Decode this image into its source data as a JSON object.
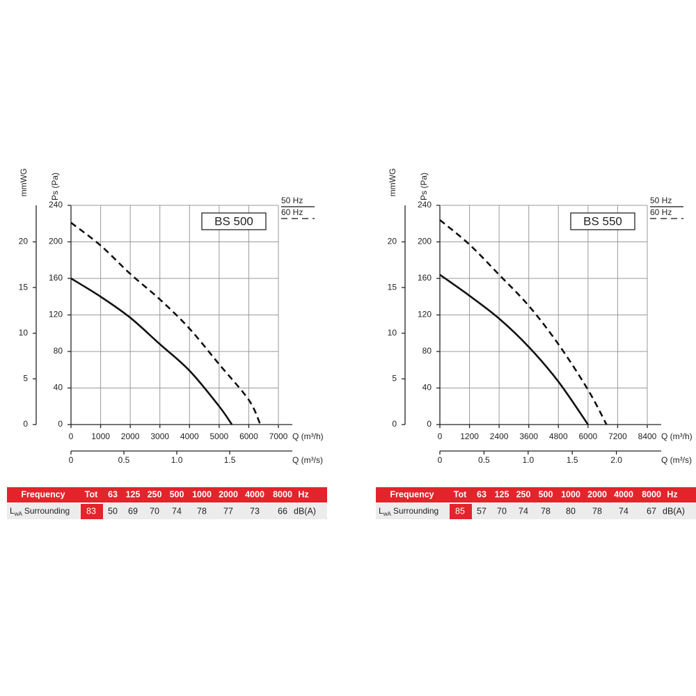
{
  "chart_data": [
    {
      "type": "line",
      "title": "BS 500",
      "y_label": "Ps (Pa)",
      "y2_label": "mmWG",
      "x_label": "Q (m³/h)",
      "x2_label": "Q (m³/s)",
      "xlim": [
        0,
        7000
      ],
      "xticks": [
        0,
        1000,
        2000,
        3000,
        4000,
        5000,
        6000,
        7000
      ],
      "x2lim": [
        0,
        1.96
      ],
      "x2ticks": [
        0,
        0.5,
        {
          "value": 1,
          "label": "1.0"
        },
        1.5
      ],
      "ylim": [
        0,
        240
      ],
      "yticks": [
        0,
        40,
        80,
        120,
        160,
        200,
        240
      ],
      "y2lim": [
        0,
        24
      ],
      "y2ticks": [
        0,
        5,
        10,
        15,
        20
      ],
      "grid": true,
      "legend": "right",
      "series": [
        {
          "name": "50 Hz",
          "color": "#111111",
          "dash": false,
          "x": [
            0,
            1000,
            2000,
            3000,
            4000,
            5000,
            5430
          ],
          "values": [
            160,
            140,
            117,
            88,
            59,
            20,
            0
          ]
        },
        {
          "name": "60 Hz",
          "color": "#111111",
          "dash": true,
          "x": [
            0,
            1000,
            2000,
            3000,
            4000,
            5000,
            6000,
            6390
          ],
          "values": [
            221,
            196,
            165,
            137,
            105,
            66,
            27,
            0
          ]
        }
      ],
      "table": {
        "header": [
          "Frequency",
          "Tot",
          "63",
          "125",
          "250",
          "500",
          "1000",
          "2000",
          "4000",
          "8000",
          "Hz"
        ],
        "row_label": [
          "L",
          "wA",
          "Surrounding"
        ],
        "tot": 83,
        "values": [
          50,
          69,
          70,
          74,
          78,
          77,
          73,
          66
        ],
        "unit": "dB(A)"
      }
    },
    {
      "type": "line",
      "title": "BS 550",
      "y_label": "Ps (Pa)",
      "y2_label": "mmWG",
      "x_label": "Q (m³/h)",
      "x2_label": "Q (m³/s)",
      "xlim": [
        0,
        8400
      ],
      "xticks": [
        0,
        1200,
        2400,
        3600,
        4800,
        6000,
        7200,
        8400
      ],
      "x2lim": [
        0,
        2.35
      ],
      "x2ticks": [
        0,
        0.5,
        {
          "value": 1,
          "label": "1.0"
        },
        1.5,
        {
          "value": 2,
          "label": "2.0"
        }
      ],
      "ylim": [
        0,
        240
      ],
      "yticks": [
        0,
        40,
        80,
        120,
        160,
        200,
        240
      ],
      "y2lim": [
        0,
        24
      ],
      "y2ticks": [
        0,
        5,
        10,
        15,
        20
      ],
      "grid": true,
      "legend": "right",
      "series": [
        {
          "name": "50 Hz",
          "color": "#111111",
          "dash": false,
          "x": [
            0,
            1200,
            2400,
            3600,
            4800,
            6000
          ],
          "values": [
            164,
            141,
            116,
            85,
            47,
            0
          ]
        },
        {
          "name": "60 Hz",
          "color": "#111111",
          "dash": true,
          "x": [
            0,
            1200,
            2400,
            3600,
            4800,
            6000,
            6750
          ],
          "values": [
            224,
            197,
            164,
            130,
            88,
            38,
            0
          ]
        }
      ],
      "table": {
        "header": [
          "Frequency",
          "Tot",
          "63",
          "125",
          "250",
          "500",
          "1000",
          "2000",
          "4000",
          "8000",
          "Hz"
        ],
        "row_label": [
          "L",
          "wA",
          "Surrounding"
        ],
        "tot": 85,
        "values": [
          57,
          70,
          74,
          78,
          80,
          78,
          74,
          67
        ],
        "unit": "dB(A)"
      }
    }
  ]
}
